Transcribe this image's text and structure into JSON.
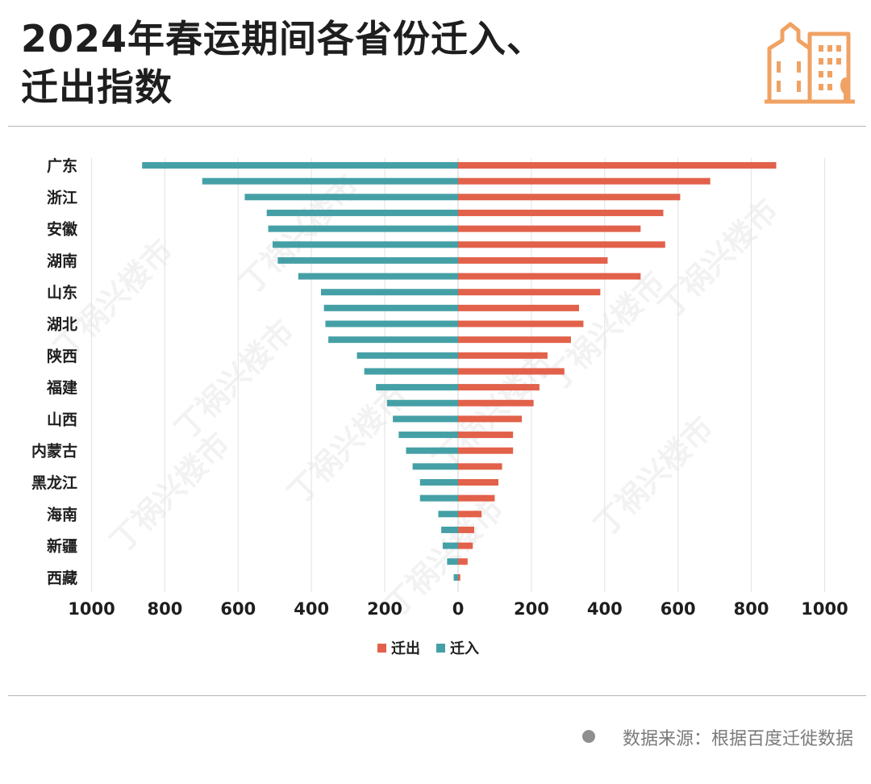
{
  "title_lines": [
    "2024年春运期间各省份迁入、",
    "迁出指数"
  ],
  "source": "数据来源：根据百度迁徙数据",
  "watermark": "丁祸兴楼市",
  "colors": {
    "out": "#e2614a",
    "in": "#45a0a6",
    "logo": "#f0a263"
  },
  "chart_data": {
    "type": "bar",
    "orientation": "horizontal-butterfly",
    "categories": [
      "广东",
      "",
      "浙江",
      "",
      "安徽",
      "",
      "湖南",
      "",
      "山东",
      "",
      "湖北",
      "",
      "陕西",
      "",
      "福建",
      "",
      "山西",
      "",
      "内蒙古",
      "",
      "黑龙江",
      "",
      "海南",
      "",
      "新疆",
      "",
      "西藏"
    ],
    "series": [
      {
        "name": "迁出",
        "values": [
          868,
          688,
          606,
          560,
          498,
          565,
          408,
          498,
          388,
          330,
          342,
          308,
          244,
          290,
          222,
          206,
          174,
          150,
          150,
          120,
          110,
          100,
          64,
          44,
          40,
          26,
          6
        ]
      },
      {
        "name": "迁入",
        "values": [
          862,
          698,
          582,
          522,
          518,
          506,
          492,
          436,
          374,
          366,
          362,
          354,
          276,
          256,
          224,
          194,
          178,
          162,
          142,
          124,
          104,
          104,
          54,
          46,
          42,
          30,
          12
        ]
      }
    ],
    "xlim": [
      -1000,
      1000
    ],
    "xticks": [
      -1000,
      -800,
      -600,
      -400,
      -200,
      0,
      200,
      400,
      600,
      800,
      1000
    ],
    "xtick_labels": [
      "1000",
      "800",
      "600",
      "400",
      "200",
      "0",
      "200",
      "400",
      "600",
      "800",
      "1000"
    ],
    "legend": [
      "迁出",
      "迁入"
    ],
    "legend_position": "bottom-center",
    "grid": true
  }
}
